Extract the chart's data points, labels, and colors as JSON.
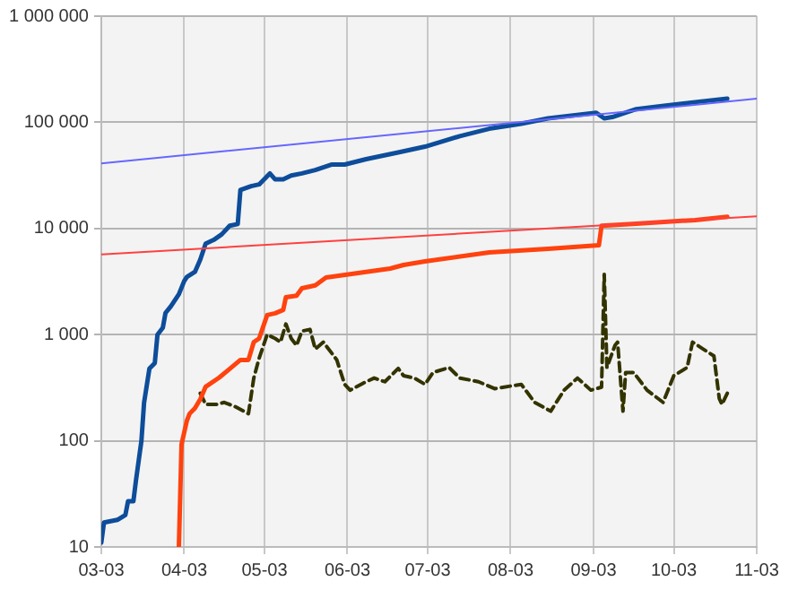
{
  "chart_data": {
    "type": "line",
    "log": "y",
    "grid": true,
    "legend": false,
    "marker": "none",
    "xlim": [
      "--03-03",
      "--11-03"
    ],
    "xticks": [
      {
        "value": "--03-03",
        "label": "03-03"
      },
      {
        "value": "--04-03",
        "label": "04-03"
      },
      {
        "value": "--05-03",
        "label": "05-03"
      },
      {
        "value": "--06-03",
        "label": "06-03"
      },
      {
        "value": "--07-03",
        "label": "07-03"
      },
      {
        "value": "--08-03",
        "label": "08-03"
      },
      {
        "value": "--09-03",
        "label": "09-03"
      },
      {
        "value": "--10-03",
        "label": "10-03"
      },
      {
        "value": "--11-03",
        "label": "11-03"
      }
    ],
    "ylim": [
      10,
      1000000
    ],
    "yticks": [
      10,
      100,
      {
        "value": 1000,
        "label": "1 000"
      },
      {
        "value": 10000,
        "label": "10 000"
      },
      {
        "value": 100000,
        "label": "100 000"
      },
      {
        "value": 1000000,
        "label": "1 000 000"
      }
    ],
    "series": [
      {
        "color": "#6666ff",
        "line_style": "solid",
        "x": [
          "--03-03",
          "--11-03"
        ],
        "values": [
          41000,
          167000
        ]
      },
      {
        "color": "#ff4040",
        "line_style": "solid",
        "x": [
          "--03-03",
          "--11-03"
        ],
        "values": [
          5700,
          13000
        ]
      },
      {
        "color": "#0d4d9a",
        "line_style": "solid",
        "x": [
          "--03-03",
          "--03-04",
          "--03-09",
          "--03-12",
          "--03-13",
          "--03-15",
          "--03-16",
          "--03-18",
          "--03-19",
          "--03-21",
          "--03-23",
          "--03-24",
          "--03-26",
          "--03-27",
          "--03-29",
          "--04-01",
          "--04-03",
          "--04-04",
          "--04-07",
          "--04-09",
          "--04-11",
          "--04-14",
          "--04-17",
          "--04-20",
          "--04-23",
          "--04-24",
          "--04-28",
          "--05-01",
          "--05-05",
          "--05-07",
          "--05-10",
          "--05-13",
          "--05-17",
          "--05-22",
          "--05-28",
          "--06-02",
          "--06-10",
          "--06-22",
          "--07-02",
          "--07-15",
          "--07-26",
          "--08-07",
          "--08-17",
          "--09-04",
          "--09-07",
          "--09-10",
          "--09-19",
          "--09-30",
          "--10-11",
          "--10-23"
        ],
        "values": [
          11,
          17,
          18,
          20,
          27,
          27,
          43,
          100,
          230,
          480,
          540,
          1000,
          1160,
          1600,
          1850,
          2400,
          3200,
          3500,
          3900,
          5100,
          7200,
          7800,
          8800,
          10600,
          11000,
          23000,
          25000,
          26000,
          33000,
          29000,
          29000,
          31500,
          33000,
          35500,
          40000,
          40000,
          45000,
          52000,
          59000,
          74000,
          87000,
          97000,
          109000,
          123000,
          109000,
          112000,
          133000,
          144000,
          155000,
          167000
        ]
      },
      {
        "color": "#ff420e",
        "line_style": "solid",
        "x": [
          "--04-01",
          "--04-02",
          "--04-04",
          "--04-05",
          "--04-07",
          "--04-09",
          "--04-11",
          "--04-16",
          "--04-20",
          "--04-24",
          "--04-27",
          "--04-29",
          "--05-01",
          "--05-04",
          "--05-07",
          "--05-10",
          "--05-11",
          "--05-15",
          "--05-17",
          "--05-22",
          "--05-26",
          "--06-04",
          "--06-19",
          "--06-24",
          "--07-02",
          "--07-26",
          "--08-17",
          "--09-05",
          "--09-06",
          "--09-19",
          "--10-11",
          "--10-23"
        ],
        "values": [
          10,
          93,
          155,
          180,
          203,
          246,
          323,
          393,
          476,
          578,
          578,
          850,
          920,
          1530,
          1590,
          1710,
          2250,
          2330,
          2730,
          2910,
          3450,
          3710,
          4190,
          4530,
          4890,
          5940,
          6420,
          6940,
          10600,
          11100,
          12000,
          12900
        ]
      },
      {
        "color": "#333300",
        "line_style": "dashed",
        "x": [
          "--04-09",
          "--04-11",
          "--04-15",
          "--04-18",
          "--04-22",
          "--04-27",
          "--04-29",
          "--05-01",
          "--05-04",
          "--05-07",
          "--05-09",
          "--05-11",
          "--05-13",
          "--05-15",
          "--05-17",
          "--05-20",
          "--05-22",
          "--05-25",
          "--05-30",
          "--06-02",
          "--06-04",
          "--06-09",
          "--06-13",
          "--06-17",
          "--06-22",
          "--06-24",
          "--06-28",
          "--07-02",
          "--07-05",
          "--07-11",
          "--07-15",
          "--07-22",
          "--07-28",
          "--08-07",
          "--08-12",
          "--08-18",
          "--08-23",
          "--08-28",
          "--09-02",
          "--09-06",
          "--09-07",
          "--09-08",
          "--09-11",
          "--09-12",
          "--09-14",
          "--09-15",
          "--09-18",
          "--09-23",
          "--09-29",
          "--10-03",
          "--10-08",
          "--10-10",
          "--10-14",
          "--10-18",
          "--10-20",
          "--10-21",
          "--10-23"
        ],
        "values": [
          280,
          220,
          220,
          230,
          210,
          180,
          390,
          600,
          1000,
          920,
          850,
          1260,
          920,
          790,
          1080,
          1120,
          730,
          850,
          580,
          340,
          300,
          350,
          390,
          360,
          480,
          410,
          390,
          340,
          440,
          490,
          390,
          360,
          310,
          340,
          230,
          190,
          300,
          390,
          300,
          320,
          3700,
          490,
          790,
          850,
          190,
          440,
          440,
          300,
          230,
          410,
          490,
          850,
          730,
          630,
          250,
          220,
          280
        ]
      }
    ]
  }
}
